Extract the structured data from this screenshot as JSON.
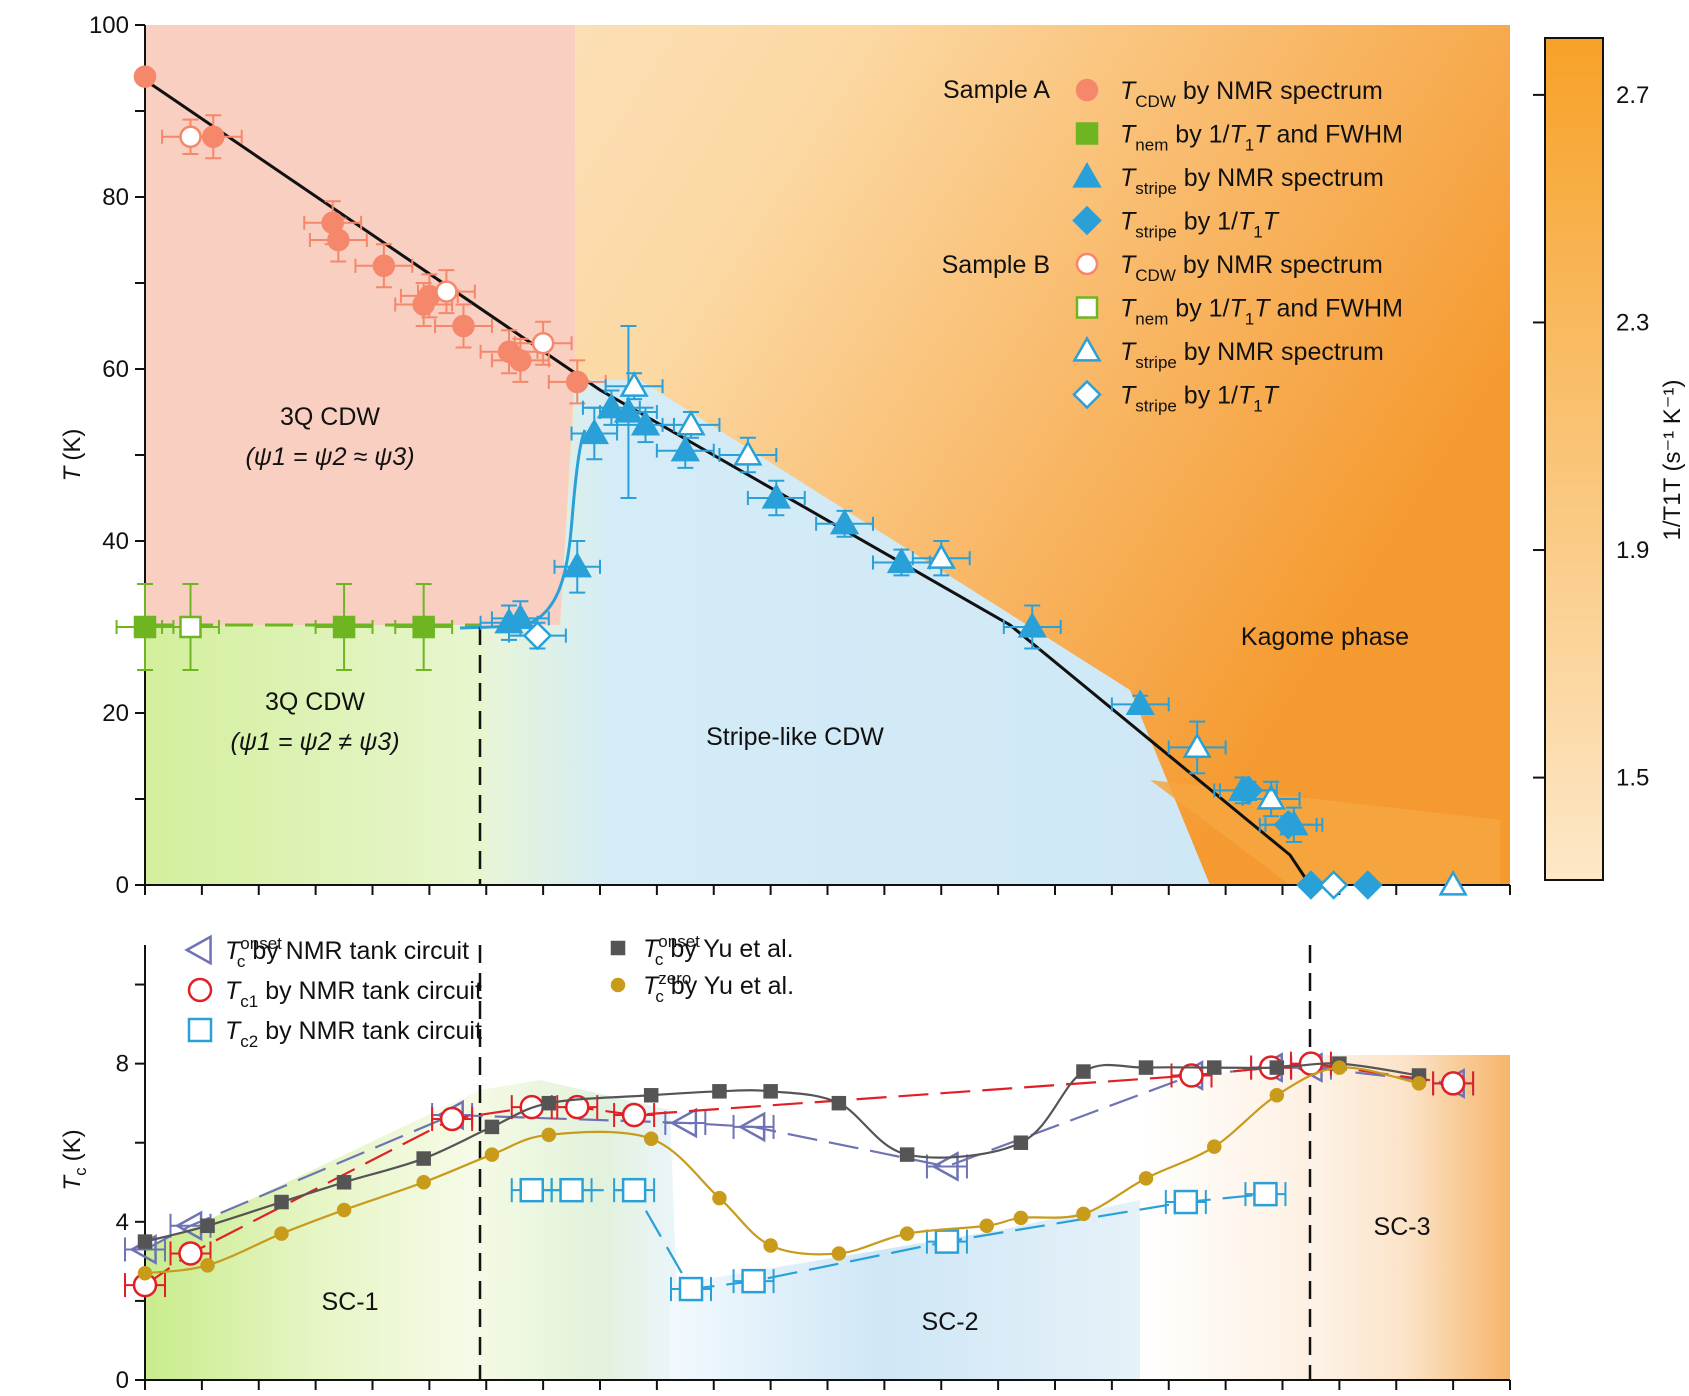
{
  "colors": {
    "cdw": "#f5876a",
    "nem": "#6fb522",
    "stripe": "#2aa0d8",
    "tank_onset": "#6d73b3",
    "tc1": "#e11f26",
    "tc2": "#2aa0d8",
    "yu_onset": "#555555",
    "yu_zero": "#c89b1a",
    "phase_line": "#111111",
    "region_3q": "#f9cfc2",
    "region_nem": "#d7f0a8",
    "region_stripe": "#cfe8f6",
    "region_kagome_light": "#fde6c4",
    "region_kagome_dark": "#f7a43a",
    "colorbar_low": "#fde8c8",
    "colorbar_high": "#f7a128"
  },
  "chart_data": [
    {
      "type": "scatter",
      "panel": "top",
      "ylabel_main": "T",
      "ylabel_unit": "(K)",
      "ylim": [
        0,
        100
      ],
      "yticks": [
        "0",
        "20",
        "40",
        "60",
        "80",
        "100"
      ],
      "xlim": [
        0,
        24
      ],
      "x_ticks_minor": 24,
      "legend": {
        "sample_a_label": "Sample A",
        "sample_b_label": "Sample B",
        "entries": [
          {
            "sym": "T",
            "sub": "CDW",
            "text": "by NMR spectrum",
            "marker": "circle",
            "filled": true,
            "color": "#f5876a"
          },
          {
            "sym": "T",
            "sub": "nem",
            "text_pre": "by 1/",
            "text_T": "T",
            "text_sub1": "1",
            "text_post": "T and FWHM",
            "marker": "square",
            "filled": true,
            "color": "#6fb522"
          },
          {
            "sym": "T",
            "sub": "stripe",
            "text": "by NMR spectrum",
            "marker": "triangle",
            "filled": true,
            "color": "#2aa0d8"
          },
          {
            "sym": "T",
            "sub": "stripe",
            "text_pre": "by 1/",
            "text_T": "T",
            "text_sub1": "1",
            "text_post": "T",
            "marker": "diamond",
            "filled": true,
            "color": "#2aa0d8"
          },
          {
            "sym": "T",
            "sub": "CDW",
            "text": "by NMR spectrum",
            "marker": "circle",
            "filled": false,
            "color": "#f5876a"
          },
          {
            "sym": "T",
            "sub": "nem",
            "text_pre": "by 1/",
            "text_T": "T",
            "text_sub1": "1",
            "text_post": "T and FWHM",
            "marker": "square",
            "filled": false,
            "color": "#6fb522"
          },
          {
            "sym": "T",
            "sub": "stripe",
            "text": "by NMR spectrum",
            "marker": "triangle",
            "filled": false,
            "color": "#2aa0d8"
          },
          {
            "sym": "T",
            "sub": "stripe",
            "text_pre": "by 1/",
            "text_T": "T",
            "text_sub1": "1",
            "text_post": "T",
            "marker": "diamond",
            "filled": false,
            "color": "#2aa0d8"
          }
        ]
      },
      "regions": {
        "cdw3q_upper_title": "3Q CDW",
        "cdw3q_upper_formula": "(ψ1 = ψ2 ≈ ψ3)",
        "cdw3q_lower_title": "3Q CDW",
        "cdw3q_lower_formula": "(ψ1 = ψ2 ≠ ψ3)",
        "stripe": "Stripe-like CDW",
        "kagome": "Kagome phase"
      },
      "series": [
        {
          "name": "T_CDW NMR spectrum (A)",
          "marker": "circle",
          "filled": true,
          "color": "#f5876a",
          "points": [
            [
              0,
              94,
              0,
              0
            ],
            [
              1.2,
              87,
              0.5,
              2.5
            ],
            [
              3.3,
              77,
              0.5,
              2.5
            ],
            [
              3.4,
              75,
              0.5,
              2.5
            ],
            [
              4.2,
              72,
              0.5,
              2.5
            ],
            [
              4.9,
              67.5,
              0.5,
              2.5
            ],
            [
              5.0,
              68.5,
              0.5,
              2.5
            ],
            [
              5.6,
              65,
              0.5,
              2.5
            ],
            [
              6.4,
              62,
              0.5,
              2.5
            ],
            [
              6.6,
              61,
              0.5,
              2.5
            ],
            [
              7.6,
              58.5,
              0.5,
              2.5
            ]
          ]
        },
        {
          "name": "T_CDW NMR spectrum (B)",
          "marker": "circle",
          "filled": false,
          "color": "#f5876a",
          "points": [
            [
              0.8,
              87,
              0.5,
              2
            ],
            [
              5.3,
              69,
              0.5,
              2.5
            ],
            [
              7.0,
              63,
              0.5,
              2.5
            ]
          ]
        },
        {
          "name": "T_nem (A)",
          "marker": "square",
          "filled": true,
          "color": "#6fb522",
          "points": [
            [
              0,
              30,
              0.5,
              5
            ],
            [
              3.5,
              30,
              0.5,
              5
            ],
            [
              4.9,
              30,
              0.5,
              5
            ]
          ]
        },
        {
          "name": "T_nem (B)",
          "marker": "square",
          "filled": false,
          "color": "#6fb522",
          "points": [
            [
              0.8,
              30,
              0.5,
              5
            ]
          ]
        },
        {
          "name": "T_stripe NMR spectrum (A)",
          "marker": "triangle",
          "filled": true,
          "color": "#2aa0d8",
          "points": [
            [
              6.4,
              30.5,
              0.5,
              2
            ],
            [
              6.6,
              31,
              0.5,
              2
            ],
            [
              7.6,
              37,
              0.4,
              3
            ],
            [
              7.9,
              52.5,
              0.4,
              3
            ],
            [
              8.2,
              55.5,
              0.5,
              2
            ],
            [
              8.5,
              55,
              0.5,
              10
            ],
            [
              8.8,
              53.5,
              0.5,
              2
            ],
            [
              9.5,
              50.5,
              0.5,
              2
            ],
            [
              11.1,
              45,
              0.5,
              2
            ],
            [
              12.3,
              42,
              0.5,
              1.5
            ],
            [
              13.3,
              37.5,
              0.5,
              1.5
            ],
            [
              15.6,
              30,
              0.5,
              2.5
            ],
            [
              17.5,
              21,
              0.5,
              1
            ],
            [
              19.3,
              11,
              0.5,
              1.5
            ],
            [
              20.2,
              7,
              0.5,
              2
            ]
          ]
        },
        {
          "name": "T_stripe NMR spectrum (B)",
          "marker": "triangle",
          "filled": false,
          "color": "#2aa0d8",
          "points": [
            [
              8.6,
              58,
              0.5,
              1.5
            ],
            [
              9.6,
              53.5,
              0.5,
              1.5
            ],
            [
              10.6,
              50,
              0.5,
              2
            ],
            [
              14.0,
              38,
              0.5,
              2
            ],
            [
              18.5,
              16,
              0.5,
              3
            ],
            [
              19.8,
              10,
              0.5,
              2
            ],
            [
              23.0,
              0,
              0,
              0
            ]
          ]
        },
        {
          "name": "T_stripe 1/T1T (A)",
          "marker": "diamond",
          "filled": true,
          "color": "#2aa0d8",
          "points": [
            [
              19.4,
              11,
              0.5,
              1
            ],
            [
              20.1,
              7,
              0.5,
              1
            ],
            [
              20.5,
              0,
              0,
              0
            ],
            [
              21.5,
              0,
              0,
              0
            ]
          ]
        },
        {
          "name": "T_stripe 1/T1T (B)",
          "marker": "diamond",
          "filled": false,
          "color": "#2aa0d8",
          "points": [
            [
              6.9,
              29,
              0.5,
              1.5
            ],
            [
              20.9,
              0,
              0,
              0
            ]
          ]
        }
      ],
      "colorbar": {
        "label": "1/T1T (s⁻¹ K⁻¹)",
        "range": [
          1.32,
          2.8
        ],
        "ticks": [
          "1.5",
          "1.9",
          "2.3",
          "2.7"
        ]
      }
    },
    {
      "type": "line",
      "panel": "bottom",
      "ylabel_main": "T",
      "ylabel_sub": "c",
      "ylabel_unit": "(K)",
      "ylim": [
        0,
        11
      ],
      "yticks": [
        "0",
        "4",
        "8"
      ],
      "xlim": [
        0,
        24
      ],
      "legend": [
        {
          "sym": "T",
          "sub": "c",
          "sup": "onset",
          "text": "by NMR tank circuit",
          "marker": "triangle-left",
          "color": "#6d73b3"
        },
        {
          "sym": "T",
          "sub": "c1",
          "sup": "",
          "text": "by NMR tank circuit",
          "marker": "circle",
          "color": "#e11f26"
        },
        {
          "sym": "T",
          "sub": "c2",
          "sup": "",
          "text": "by NMR tank circuit",
          "marker": "square",
          "color": "#2aa0d8"
        },
        {
          "sym": "T",
          "sub": "c",
          "sup": "onset",
          "text": "by Yu et al.",
          "marker": "small-square",
          "color": "#555555"
        },
        {
          "sym": "T",
          "sub": "c",
          "sup": "zero",
          "text": "by Yu et al.",
          "marker": "small-circle",
          "color": "#c89b1a"
        }
      ],
      "regions": {
        "sc1": "SC-1",
        "sc2": "SC-2",
        "sc3": "SC-3"
      },
      "series": [
        {
          "name": "Tc onset NMR tank circuit",
          "marker": "triangle-left",
          "color": "#6d73b3",
          "points": [
            [
              0,
              3.3
            ],
            [
              0.8,
              3.9
            ],
            [
              5.4,
              6.7
            ],
            [
              9.5,
              6.5
            ],
            [
              10.7,
              6.4
            ],
            [
              14.1,
              5.4
            ],
            [
              18.4,
              7.7
            ],
            [
              19.8,
              7.9
            ],
            [
              20.5,
              7.9
            ],
            [
              23.0,
              7.5
            ]
          ]
        },
        {
          "name": "Tc1 NMR tank circuit",
          "marker": "circle",
          "color": "#e11f26",
          "points": [
            [
              0,
              2.4
            ],
            [
              0.8,
              3.2
            ],
            [
              5.4,
              6.6
            ],
            [
              6.8,
              6.9
            ],
            [
              7.6,
              6.9
            ],
            [
              8.6,
              6.7
            ],
            [
              18.4,
              7.7
            ],
            [
              19.8,
              7.9
            ],
            [
              20.5,
              8.0
            ],
            [
              23.0,
              7.5
            ]
          ]
        },
        {
          "name": "Tc2 NMR tank circuit",
          "marker": "square",
          "color": "#2aa0d8",
          "points": [
            [
              6.8,
              4.8
            ],
            [
              7.5,
              4.8
            ],
            [
              8.6,
              4.8
            ],
            [
              9.6,
              2.3
            ],
            [
              10.7,
              2.5
            ],
            [
              14.1,
              3.5
            ],
            [
              18.3,
              4.5
            ],
            [
              19.7,
              4.7
            ]
          ]
        },
        {
          "name": "Tc onset Yu et al.",
          "marker": "small-square",
          "color": "#555555",
          "points": [
            [
              0,
              3.5
            ],
            [
              1.1,
              3.9
            ],
            [
              2.4,
              4.5
            ],
            [
              3.5,
              5.0
            ],
            [
              4.9,
              5.6
            ],
            [
              6.1,
              6.4
            ],
            [
              7.1,
              7.0
            ],
            [
              8.9,
              7.2
            ],
            [
              10.1,
              7.3
            ],
            [
              11.0,
              7.3
            ],
            [
              12.2,
              7.0
            ],
            [
              13.4,
              5.7
            ],
            [
              15.4,
              6.0
            ],
            [
              16.5,
              7.8
            ],
            [
              17.6,
              7.9
            ],
            [
              18.8,
              7.9
            ],
            [
              19.9,
              7.9
            ],
            [
              21.0,
              8.0
            ],
            [
              22.4,
              7.7
            ]
          ]
        },
        {
          "name": "Tc zero Yu et al.",
          "marker": "small-circle",
          "color": "#c89b1a",
          "points": [
            [
              0,
              2.7
            ],
            [
              1.1,
              2.9
            ],
            [
              2.4,
              3.7
            ],
            [
              3.5,
              4.3
            ],
            [
              4.9,
              5.0
            ],
            [
              6.1,
              5.7
            ],
            [
              7.1,
              6.2
            ],
            [
              8.9,
              6.1
            ],
            [
              10.1,
              4.6
            ],
            [
              11.0,
              3.4
            ],
            [
              12.2,
              3.2
            ],
            [
              13.4,
              3.7
            ],
            [
              14.8,
              3.9
            ],
            [
              15.4,
              4.1
            ],
            [
              16.5,
              4.2
            ],
            [
              17.6,
              5.1
            ],
            [
              18.8,
              5.9
            ],
            [
              19.9,
              7.2
            ],
            [
              21.0,
              7.9
            ],
            [
              22.4,
              7.5
            ]
          ]
        }
      ]
    }
  ]
}
